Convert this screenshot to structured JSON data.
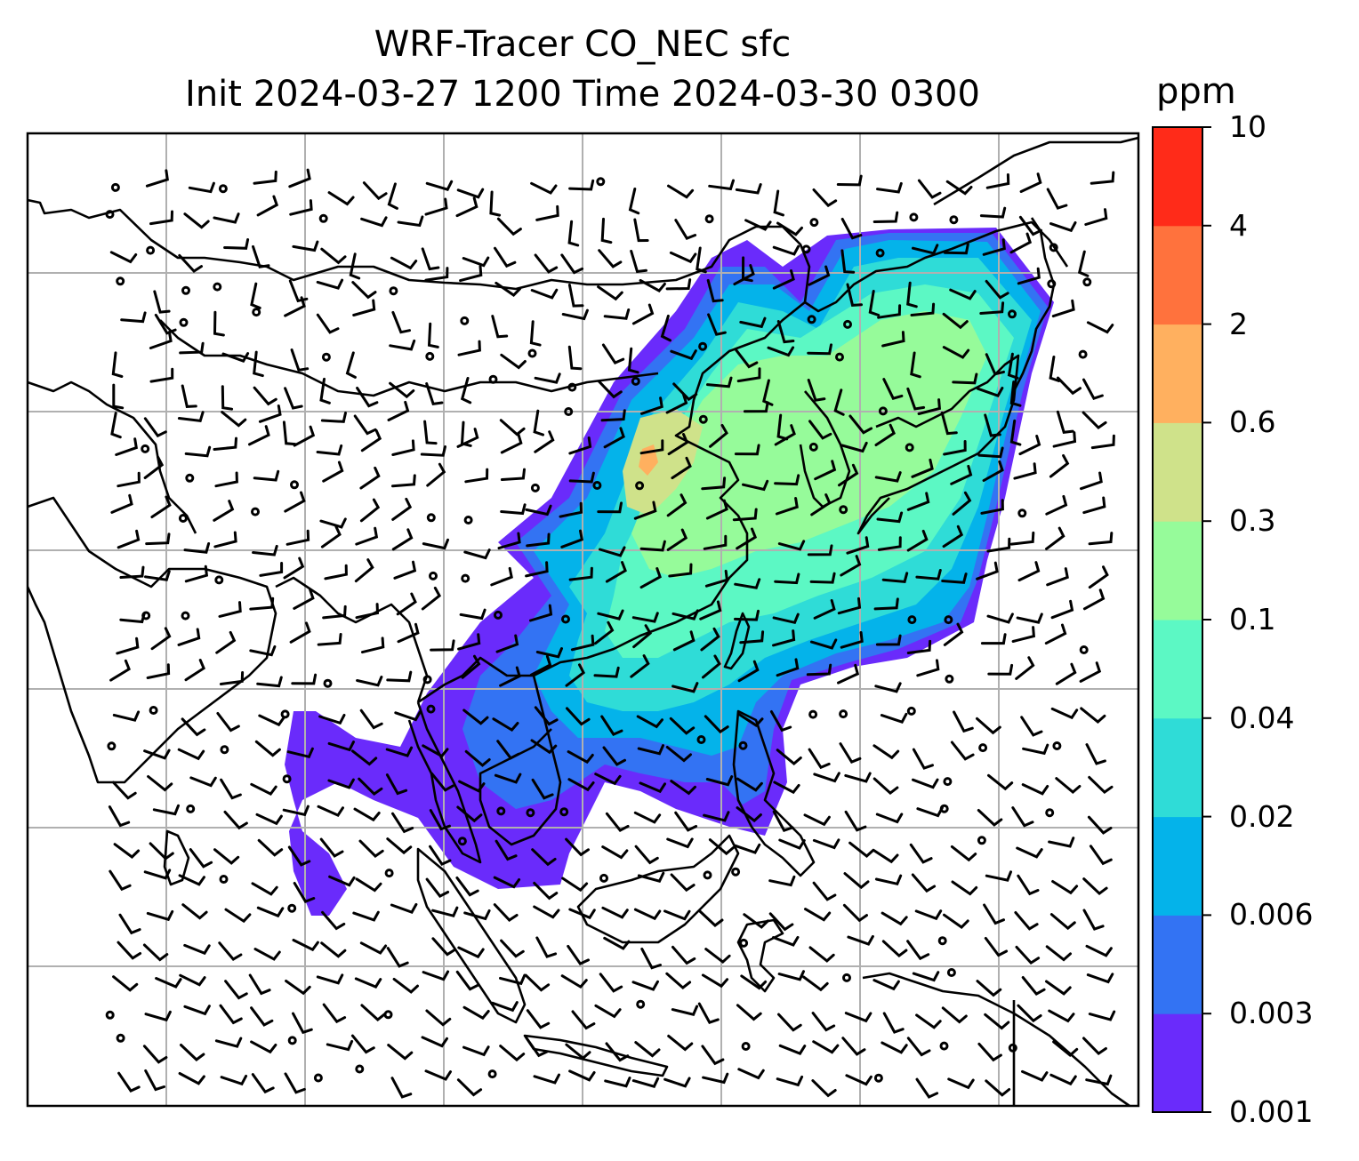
{
  "title": {
    "line1": "WRF-Tracer CO_NEC sfc",
    "line2": "Init 2024-03-27 1200 Time 2024-03-30 0300"
  },
  "colorbar": {
    "unit": "ppm",
    "levels": [
      "0.001",
      "0.003",
      "0.006",
      "0.02",
      "0.04",
      "0.1",
      "0.3",
      "0.6",
      "2",
      "4",
      "10"
    ],
    "colors": [
      "#6a2bfb",
      "#3373f3",
      "#04b3ea",
      "#2fdcd7",
      "#5cf8c4",
      "#96fb9a",
      "#cfe28a",
      "#ffb05f",
      "#ff723d",
      "#ff2b19"
    ]
  },
  "map": {
    "land_color": "#ffffff",
    "coastline_color": "#000000",
    "gridline_color": "#b0b0b0",
    "gridlines": true,
    "calm_wind_marker": "circle",
    "wind_symbol": "barb"
  }
}
